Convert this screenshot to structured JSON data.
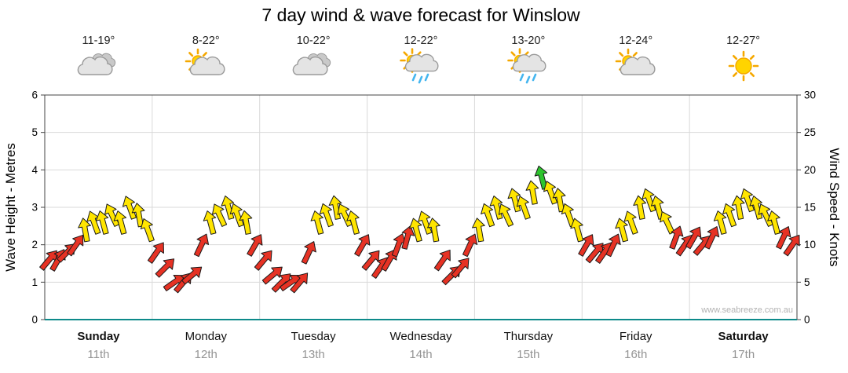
{
  "title": "7 day wind & wave forecast for Winslow",
  "watermark": "www.seabreeze.com.au",
  "left_axis": {
    "label": "Wave Height - Metres",
    "min": 0,
    "max": 6,
    "ticks": [
      0,
      1,
      2,
      3,
      4,
      5,
      6
    ]
  },
  "right_axis": {
    "label": "Wind Speed - Knots",
    "min": 0,
    "max": 30,
    "ticks": [
      0,
      5,
      10,
      15,
      20,
      25,
      30
    ]
  },
  "colors": {
    "red": "#e63224",
    "yellow": "#ffe500",
    "green": "#2ec42e",
    "grid": "#d9d9d9",
    "border": "#444444",
    "axis": "#0d8a8a",
    "sun": "#FFD400",
    "sun_ray": "#F5A800",
    "cloud_light": "#e4e4e4",
    "cloud_dark": "#c9c9c9",
    "rain": "#45B6EF"
  },
  "days": [
    {
      "name": "Sunday",
      "date": "11th",
      "temp": "11-19°",
      "icon": "cloudy",
      "weekend": true
    },
    {
      "name": "Monday",
      "date": "12th",
      "temp": "8-22°",
      "icon": "partly-sunny",
      "weekend": false
    },
    {
      "name": "Tuesday",
      "date": "13th",
      "temp": "10-22°",
      "icon": "cloudy",
      "weekend": false
    },
    {
      "name": "Wednesday",
      "date": "14th",
      "temp": "12-22°",
      "icon": "showers",
      "weekend": false
    },
    {
      "name": "Thursday",
      "date": "15th",
      "temp": "13-20°",
      "icon": "showers",
      "weekend": false
    },
    {
      "name": "Friday",
      "date": "16th",
      "temp": "12-24°",
      "icon": "partly-sunny",
      "weekend": false
    },
    {
      "name": "Saturday",
      "date": "17th",
      "temp": "12-27°",
      "icon": "sunny",
      "weekend": true
    }
  ],
  "chart_data": {
    "type": "scatter",
    "subtype": "wind-arrows",
    "title": "7 day wind & wave forecast for Winslow",
    "x_unit": "hours from start of Sunday",
    "x_range": [
      0,
      168
    ],
    "arrow_interval_hours": 2,
    "y_unit": "knots",
    "y_range": [
      0,
      30
    ],
    "dir_unit": "degrees clockwise from pointing up",
    "speed_color_thresholds": {
      "yellow_min": 12,
      "green_min": 19
    },
    "arrows": [
      [
        0,
        8,
        40
      ],
      [
        2,
        8,
        30
      ],
      [
        4,
        9,
        45
      ],
      [
        6,
        10,
        35
      ],
      [
        8,
        12,
        -10
      ],
      [
        10,
        13,
        -20
      ],
      [
        12,
        13,
        -15
      ],
      [
        14,
        14,
        -25
      ],
      [
        16,
        13,
        -15
      ],
      [
        18,
        15,
        -20
      ],
      [
        20,
        14,
        -10
      ],
      [
        22,
        12,
        -20
      ],
      [
        24,
        9,
        35
      ],
      [
        26,
        7,
        45
      ],
      [
        28,
        5,
        55
      ],
      [
        30,
        5,
        40
      ],
      [
        32,
        6,
        50
      ],
      [
        34,
        10,
        25
      ],
      [
        36,
        13,
        -15
      ],
      [
        38,
        14,
        -25
      ],
      [
        40,
        15,
        -15
      ],
      [
        42,
        14,
        -20
      ],
      [
        44,
        13,
        -10
      ],
      [
        46,
        10,
        30
      ],
      [
        48,
        8,
        40
      ],
      [
        50,
        6,
        50
      ],
      [
        52,
        5,
        45
      ],
      [
        54,
        5,
        55
      ],
      [
        56,
        5,
        40
      ],
      [
        58,
        9,
        25
      ],
      [
        60,
        13,
        -15
      ],
      [
        62,
        14,
        -20
      ],
      [
        64,
        15,
        -10
      ],
      [
        66,
        14,
        -25
      ],
      [
        68,
        13,
        -15
      ],
      [
        70,
        10,
        30
      ],
      [
        72,
        8,
        40
      ],
      [
        74,
        7,
        35
      ],
      [
        76,
        8,
        30
      ],
      [
        78,
        10,
        20
      ],
      [
        80,
        11,
        15
      ],
      [
        82,
        12,
        -15
      ],
      [
        84,
        13,
        -20
      ],
      [
        86,
        12,
        -10
      ],
      [
        88,
        8,
        35
      ],
      [
        90,
        6,
        45
      ],
      [
        92,
        7,
        40
      ],
      [
        94,
        10,
        25
      ],
      [
        96,
        12,
        -10
      ],
      [
        98,
        14,
        -20
      ],
      [
        100,
        15,
        -15
      ],
      [
        102,
        14,
        -25
      ],
      [
        104,
        16,
        -15
      ],
      [
        106,
        15,
        -20
      ],
      [
        108,
        17,
        -10
      ],
      [
        110,
        19,
        -15
      ],
      [
        112,
        17,
        -20
      ],
      [
        114,
        16,
        -10
      ],
      [
        116,
        14,
        -20
      ],
      [
        118,
        12,
        -15
      ],
      [
        120,
        10,
        30
      ],
      [
        122,
        9,
        40
      ],
      [
        124,
        9,
        35
      ],
      [
        126,
        10,
        25
      ],
      [
        128,
        12,
        -15
      ],
      [
        130,
        13,
        -20
      ],
      [
        132,
        15,
        -10
      ],
      [
        134,
        16,
        -20
      ],
      [
        136,
        15,
        -15
      ],
      [
        138,
        13,
        -25
      ],
      [
        140,
        11,
        20
      ],
      [
        142,
        10,
        35
      ],
      [
        144,
        11,
        30
      ],
      [
        146,
        10,
        40
      ],
      [
        148,
        11,
        25
      ],
      [
        150,
        13,
        -15
      ],
      [
        152,
        14,
        -20
      ],
      [
        154,
        15,
        -10
      ],
      [
        156,
        16,
        -20
      ],
      [
        158,
        15,
        -15
      ],
      [
        160,
        14,
        -25
      ],
      [
        162,
        13,
        -15
      ],
      [
        164,
        11,
        25
      ],
      [
        166,
        10,
        35
      ]
    ]
  }
}
